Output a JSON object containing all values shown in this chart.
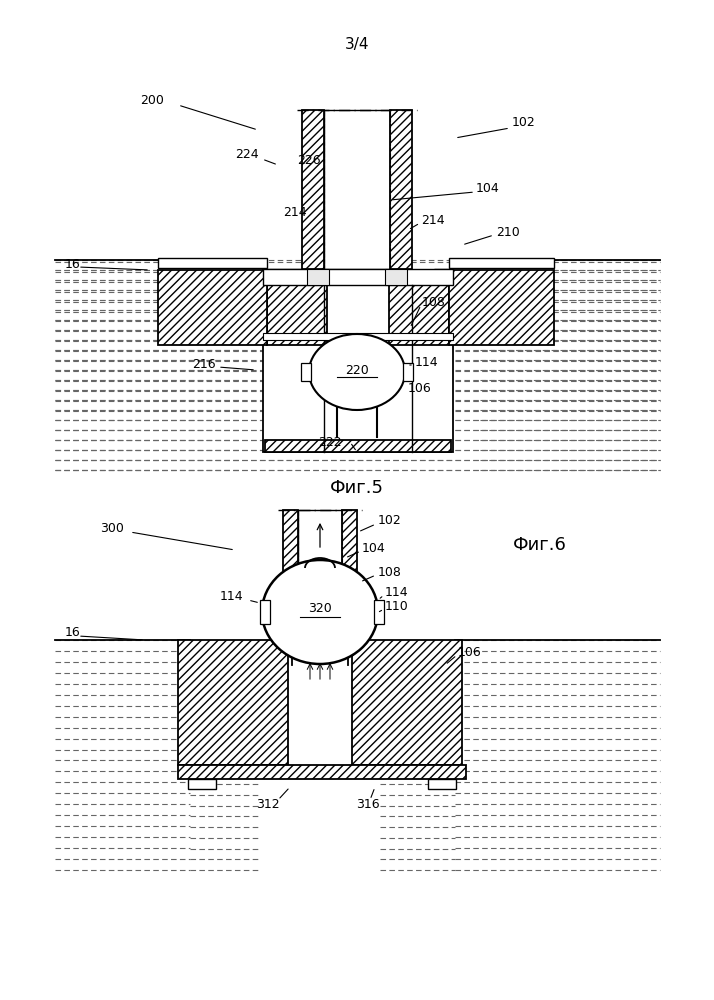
{
  "fig5_label": "Фиг.5",
  "fig6_label": "Фиг.6",
  "page_num": "3/4",
  "bg_color": "#ffffff"
}
